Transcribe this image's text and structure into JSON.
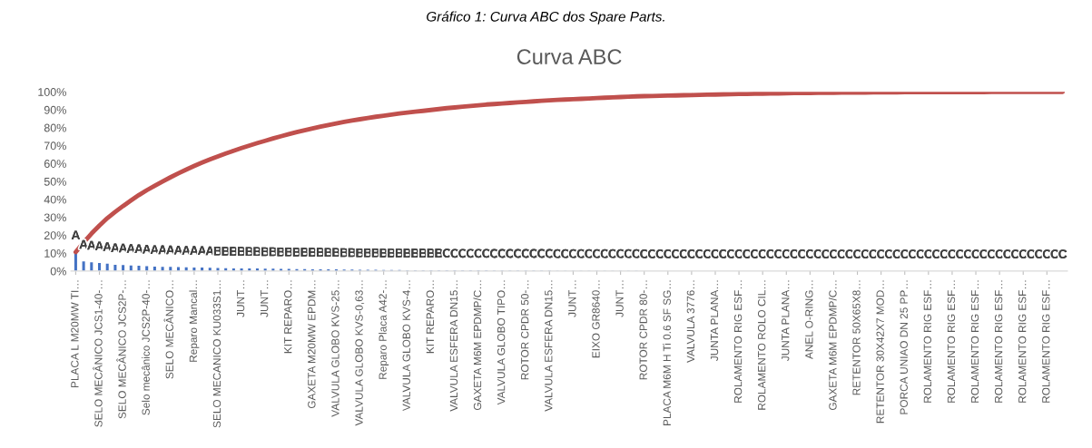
{
  "chart_data": {
    "type": "bar",
    "title": "Curva ABC",
    "annotations": [
      "Gráfico 1: Curva ABC dos Spare Parts."
    ],
    "categories": [
      "PLACA L M20MW TI…",
      null,
      null,
      "SELO MECÂNICO JCS1-40-…",
      null,
      null,
      "SELO MECÂNICO JCS2P-…",
      null,
      null,
      "Selo mecânico JCS2P-40-…",
      null,
      null,
      "SELO MECÂNICO…",
      null,
      null,
      "Reparo Mancal…",
      null,
      null,
      "SELO MECANICO KU033S1…",
      null,
      null,
      "JUNT…",
      null,
      null,
      "JUNT…",
      null,
      null,
      "KIT REPARO…",
      null,
      null,
      "GAXETA M20MW EPDM…",
      null,
      null,
      "VALVULA GLOBO KVS-25…",
      null,
      null,
      "VALVULA GLOBO KVS-0,63…",
      null,
      null,
      "Reparo Placa A42-…",
      null,
      null,
      "VALVULA GLOBO KVS-4…",
      null,
      null,
      "KIT REPARO…",
      null,
      null,
      "VALVULA ESFERA DN15…",
      null,
      null,
      "GAXETA M6M EPDMP/C…",
      null,
      null,
      "VALVULA GLOBO TIPO…",
      null,
      null,
      "ROTOR CPDR 50-…",
      null,
      null,
      "VALVULA ESFERA DN15…",
      null,
      null,
      "JUNT…",
      null,
      null,
      "EIXO GR8640…",
      null,
      null,
      "JUNT…",
      null,
      null,
      "ROTOR CPDR 80-…",
      null,
      null,
      "PLACA M6M H Ti 0.6 SF SG…",
      null,
      null,
      "VALVULA 3776…",
      null,
      null,
      "JUNTA PLANA…",
      null,
      null,
      "ROLAMENTO RIG ESF…",
      null,
      null,
      "ROLAMENTO ROLO CIL…",
      null,
      null,
      "JUNTA PLANA…",
      null,
      null,
      "ANEL O-RING…",
      null,
      null,
      "GAXETA M6M EPDMP/C…",
      null,
      null,
      "RETENTOR 50X65X8…",
      null,
      null,
      "RETENTOR 30X42X7 MOD…",
      null,
      null,
      "PORCA UNIAO DN 25 PP…",
      null,
      null,
      "ROLAMENTO RIG ESF…",
      null,
      null,
      "ROLAMENTO RIG ESF…",
      null,
      null,
      "ROLAMENTO RIG ESF…",
      null,
      null,
      "ROLAMENTO RIG ESF…",
      null,
      null,
      "ROLAMENTO RIG ESF…",
      null,
      null,
      "ROLAMENTO RIG ESF…",
      null,
      null
    ],
    "series": [
      {
        "color": "#4472c4",
        "values": [
          10.6,
          5.4,
          4.9,
          4.5,
          4.1,
          3.5,
          3.3,
          3.1,
          3.0,
          2.7,
          2.5,
          2.4,
          2.3,
          2.2,
          2.1,
          2.0,
          1.9,
          1.8,
          1.7,
          1.6,
          1.5,
          1.5,
          1.4,
          1.4,
          1.3,
          1.3,
          1.2,
          1.2,
          1.1,
          1.1,
          1.0,
          1.0,
          0.9,
          0.9,
          0.8,
          0.8,
          0.7,
          0.7,
          0.7,
          0.6,
          0.6,
          0.6,
          0.5,
          0.5,
          0.5,
          0.5,
          0.5,
          0.5,
          0.4,
          0.4,
          0.4,
          0.4,
          0.4,
          0.3,
          0.3,
          0.3,
          0.3,
          0.3,
          0.3,
          0.3,
          0.3,
          0.2,
          0.2,
          0.2,
          0.2,
          0.2,
          0.2,
          0.2,
          0.2,
          0.2,
          0.2,
          0.2,
          0.1,
          0.1,
          0.1,
          0.1,
          0.1,
          0.1,
          0.1,
          0.1,
          0.1,
          0.1,
          0.1,
          0.1,
          0.07,
          0.07,
          0.07,
          0.07,
          0.07,
          0.07,
          0.07,
          0.07,
          0.07,
          0.07,
          0.07,
          0.02,
          0.02,
          0.02,
          0.02,
          0.02,
          0.02,
          0.02,
          0.02,
          0.02,
          0.02,
          0.02,
          0.02,
          0.02,
          0.02,
          0.02,
          0.02,
          0.02,
          0.02,
          0.02,
          0.02,
          0.02,
          0.02,
          0.02,
          0.02,
          0.02,
          0.02,
          0.02,
          0.02,
          0.02,
          0.02,
          0.02
        ],
        "value_labels": [
          "A",
          "A",
          "A",
          "A",
          "A",
          "A",
          "A",
          "A",
          "A",
          "A",
          "A",
          "A",
          "A",
          "A",
          "A",
          "A",
          "A",
          "A",
          "B",
          "B",
          "B",
          "B",
          "B",
          "B",
          "B",
          "B",
          "B",
          "B",
          "B",
          "B",
          "B",
          "B",
          "B",
          "B",
          "B",
          "B",
          "B",
          "B",
          "B",
          "B",
          "B",
          "B",
          "B",
          "B",
          "B",
          "B",
          "B",
          "C",
          "C",
          "C",
          "C",
          "C",
          "C",
          "C",
          "C",
          "C",
          "C",
          "C",
          "C",
          "C",
          "C",
          "C",
          "C",
          "C",
          "C",
          "C",
          "C",
          "C",
          "C",
          "C",
          "C",
          "C",
          "C",
          "C",
          "C",
          "C",
          "C",
          "C",
          "C",
          "C",
          "C",
          "C",
          "C",
          "C",
          "C",
          "C",
          "C",
          "C",
          "C",
          "C",
          "C",
          "C",
          "C",
          "C",
          "C",
          "C",
          "C",
          "C",
          "C",
          "C",
          "C",
          "C",
          "C",
          "C",
          "C",
          "C",
          "C",
          "C",
          "C",
          "C",
          "C",
          "C",
          "C",
          "C",
          "C",
          "C",
          "C",
          "C",
          "C",
          "C",
          "C",
          "C",
          "C",
          "C",
          "C",
          "C"
        ]
      },
      {
        "type": "line",
        "color": "#c0504d",
        "values": [
          10.6,
          16.0,
          20.9,
          25.4,
          29.5,
          33.0,
          36.3,
          39.4,
          42.4,
          45.1,
          47.6,
          50.0,
          52.3,
          54.5,
          56.6,
          58.6,
          60.5,
          62.3,
          64.0,
          65.6,
          67.1,
          68.6,
          70.0,
          71.4,
          72.7,
          74.0,
          75.2,
          76.4,
          77.5,
          78.6,
          79.6,
          80.6,
          81.5,
          82.4,
          83.2,
          84.0,
          84.7,
          85.4,
          86.1,
          86.7,
          87.3,
          87.9,
          88.4,
          88.9,
          89.4,
          89.9,
          90.4,
          90.9,
          91.3,
          91.7,
          92.1,
          92.5,
          92.9,
          93.2,
          93.5,
          93.8,
          94.1,
          94.4,
          94.7,
          95.0,
          95.3,
          95.5,
          95.7,
          95.9,
          96.1,
          96.3,
          96.5,
          96.7,
          96.9,
          97.1,
          97.3,
          97.5,
          97.6,
          97.7,
          97.8,
          97.9,
          98.0,
          98.1,
          98.2,
          98.3,
          98.4,
          98.5,
          98.6,
          98.7,
          98.8,
          98.8,
          98.9,
          99.0,
          99.1,
          99.1,
          99.2,
          99.3,
          99.3,
          99.4,
          99.5,
          99.5,
          99.5,
          99.6,
          99.6,
          99.6,
          99.6,
          99.7,
          99.7,
          99.7,
          99.7,
          99.8,
          99.8,
          99.8,
          99.8,
          99.8,
          99.9,
          99.9,
          99.9,
          99.9,
          99.9,
          99.9,
          100,
          100,
          100,
          100,
          100,
          100,
          100,
          100,
          100,
          100
        ]
      }
    ],
    "ylim": [
      0,
      100
    ],
    "yticks": [
      {
        "value": 0,
        "label": "0%"
      },
      {
        "value": 10,
        "label": "10%"
      },
      {
        "value": 20,
        "label": "20%"
      },
      {
        "value": 30,
        "label": "30%"
      },
      {
        "value": 40,
        "label": "40%"
      },
      {
        "value": 50,
        "label": "50%"
      },
      {
        "value": 60,
        "label": "60%"
      },
      {
        "value": 70,
        "label": "70%"
      },
      {
        "value": 80,
        "label": "80%"
      },
      {
        "value": 90,
        "label": "90%"
      },
      {
        "value": 100,
        "label": "100%"
      }
    ],
    "grid": false
  }
}
